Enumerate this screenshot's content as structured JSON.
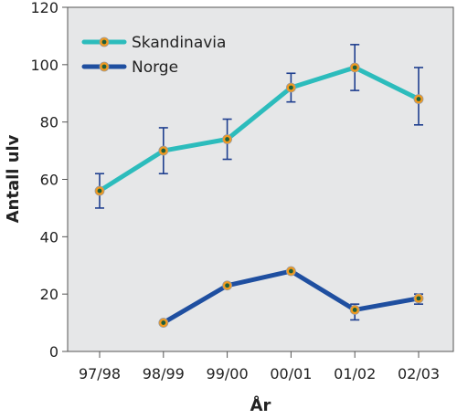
{
  "chart_data": {
    "type": "line",
    "title": "",
    "xlabel": "År",
    "ylabel": "Antall ulv",
    "categories": [
      "97/98",
      "98/99",
      "99/00",
      "00/01",
      "01/02",
      "02/03"
    ],
    "ylim": [
      0,
      120
    ],
    "yticks": [
      0,
      20,
      40,
      60,
      80,
      100,
      120
    ],
    "grid": false,
    "legend_position": "top-left",
    "background_color": "#e6e7e8",
    "marker_fill": "#f29a1f",
    "marker_center": "#1e5e3a",
    "error_bar_color": "#1f3f8f",
    "series": [
      {
        "name": "Skandinavia",
        "color": "#2cbcbc",
        "values": [
          56,
          70,
          74,
          92,
          99,
          88
        ],
        "error_low": [
          50,
          62,
          67,
          87,
          91,
          79
        ],
        "error_high": [
          62,
          78,
          81,
          97,
          107,
          99
        ]
      },
      {
        "name": "Norge",
        "color": "#1f4fa0",
        "values": [
          null,
          10,
          23,
          28,
          14.5,
          18.5
        ],
        "error_low": [
          null,
          10,
          23,
          28,
          11,
          16.5
        ],
        "error_high": [
          null,
          10,
          23,
          28,
          16.5,
          20
        ]
      }
    ]
  }
}
